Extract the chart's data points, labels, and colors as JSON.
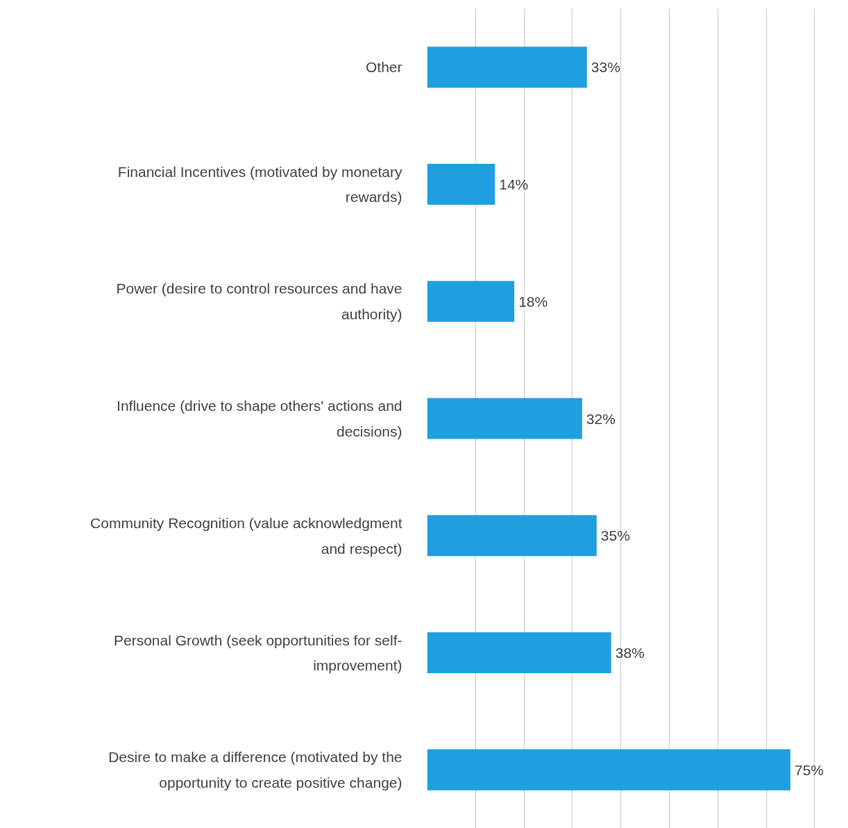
{
  "chart_data": {
    "type": "bar",
    "orientation": "horizontal",
    "categories": [
      "Other",
      "Financial Incentives (motivated by monetary rewards)",
      "Power (desire to control resources and have authority)",
      "Influence (drive to shape others' actions and decisions)",
      "Community Recognition (value acknowledgment and respect)",
      "Personal Growth (seek opportunities for self-improvement)",
      "Desire to make a difference (motivated by the opportunity to create positive change)"
    ],
    "values": [
      33,
      14,
      18,
      32,
      35,
      38,
      75
    ],
    "value_labels": [
      "33%",
      "14%",
      "18%",
      "32%",
      "35%",
      "38%",
      "75%"
    ],
    "color": "#209fe0",
    "grid": "x",
    "tick_labels": "y"
  }
}
